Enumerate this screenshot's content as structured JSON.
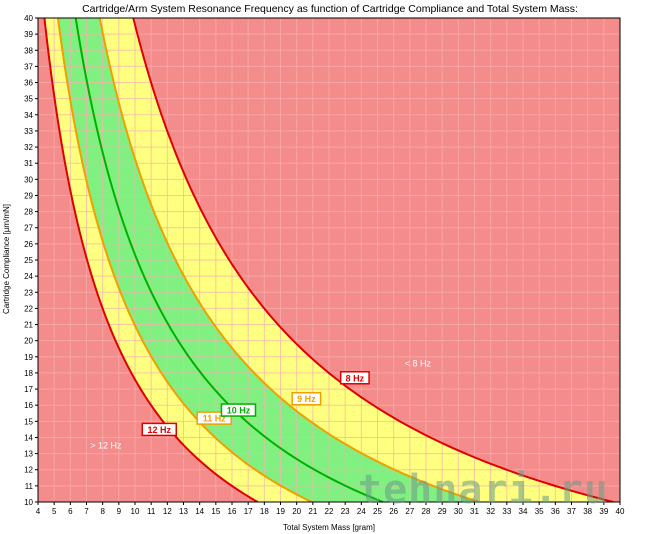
{
  "chart_data": {
    "type": "area",
    "title": "Cartridge/Arm System Resonance Frequency as function of Cartridge Compliance and Total System Mass:",
    "xlabel": "Total System Mass [gram]",
    "ylabel": "Cartridge Compliance [µm/mN]",
    "xlim": [
      4,
      40
    ],
    "ylim": [
      10,
      40
    ],
    "x_ticks": [
      4,
      5,
      6,
      7,
      8,
      9,
      10,
      11,
      12,
      13,
      14,
      15,
      16,
      17,
      18,
      19,
      20,
      21,
      22,
      23,
      24,
      25,
      26,
      27,
      28,
      29,
      30,
      31,
      32,
      33,
      34,
      35,
      36,
      37,
      38,
      39,
      40
    ],
    "y_ticks": [
      10,
      11,
      12,
      13,
      14,
      15,
      16,
      17,
      18,
      19,
      20,
      21,
      22,
      23,
      24,
      25,
      26,
      27,
      28,
      29,
      30,
      31,
      32,
      33,
      34,
      35,
      36,
      37,
      38,
      39,
      40
    ],
    "grid": true,
    "series": [
      {
        "name": "12 Hz",
        "frequency_hz": 12,
        "color": "#e00000"
      },
      {
        "name": "11 Hz",
        "frequency_hz": 11,
        "color": "#f0a000"
      },
      {
        "name": "10 Hz",
        "frequency_hz": 10,
        "color": "#00b000"
      },
      {
        "name": "9 Hz",
        "frequency_hz": 9,
        "color": "#f0a000"
      },
      {
        "name": "8 Hz",
        "frequency_hz": 8,
        "color": "#e00000"
      }
    ],
    "annotations": [
      {
        "text": "> 12 Hz",
        "x": 8.2,
        "y": 13.5
      },
      {
        "text": "< 8 Hz",
        "x": 27.5,
        "y": 18.6
      },
      {
        "text": "12 Hz",
        "x": 11.5,
        "y": 14.5
      },
      {
        "text": "11 Hz",
        "x": 14.9,
        "y": 15.2
      },
      {
        "text": "10 Hz",
        "x": 16.4,
        "y": 15.7
      },
      {
        "text": "9 Hz",
        "x": 20.6,
        "y": 16.4
      },
      {
        "text": "8 Hz",
        "x": 23.6,
        "y": 17.7
      }
    ],
    "region_colors": {
      "outside": "#f58c8c",
      "tolerable": "#ffff80",
      "optimal": "#80f080",
      "grid": "#f9b0b0"
    }
  },
  "watermark": "tehnari.ru"
}
